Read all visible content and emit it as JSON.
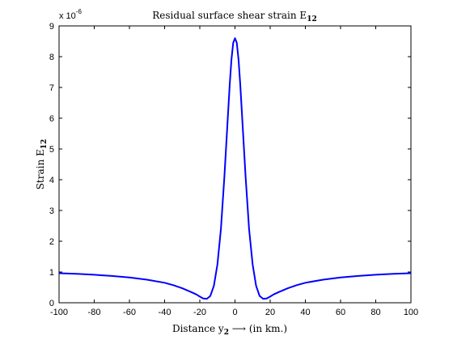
{
  "chart_data": {
    "type": "line",
    "title_main": "Residual surface shear strain E",
    "title_sub": "12",
    "xlabel_pre": "Distance y",
    "xlabel_sub": "2",
    "xlabel_post": " ⟶ (in km.)",
    "ylabel_main": "Strain E",
    "ylabel_sub": "12",
    "y_multiplier_base": "x 10",
    "y_multiplier_exp": "-6",
    "xlim": [
      -100,
      100
    ],
    "ylim": [
      0,
      9
    ],
    "xticks": [
      -100,
      -80,
      -60,
      -40,
      -20,
      0,
      20,
      40,
      60,
      80,
      100
    ],
    "yticks": [
      0,
      1,
      2,
      3,
      4,
      5,
      6,
      7,
      8,
      9
    ],
    "grid": false,
    "series": [
      {
        "color": "#0000ff",
        "x": [
          -100,
          -90,
          -80,
          -70,
          -60,
          -50,
          -40,
          -35,
          -30,
          -25,
          -22,
          -20,
          -18,
          -16,
          -14,
          -12,
          -10,
          -8,
          -6,
          -4,
          -3,
          -2,
          -1,
          0,
          1,
          2,
          3,
          4,
          6,
          8,
          10,
          12,
          14,
          16,
          18,
          20,
          22,
          25,
          30,
          35,
          40,
          50,
          60,
          70,
          80,
          90,
          100
        ],
        "y": [
          0.96,
          0.94,
          0.91,
          0.87,
          0.82,
          0.75,
          0.65,
          0.57,
          0.47,
          0.35,
          0.27,
          0.2,
          0.14,
          0.13,
          0.22,
          0.55,
          1.25,
          2.4,
          4.1,
          6.1,
          7.1,
          7.9,
          8.45,
          8.6,
          8.45,
          7.9,
          7.1,
          6.1,
          4.1,
          2.4,
          1.25,
          0.55,
          0.22,
          0.13,
          0.14,
          0.2,
          0.27,
          0.35,
          0.47,
          0.57,
          0.65,
          0.75,
          0.82,
          0.87,
          0.91,
          0.94,
          0.96
        ]
      }
    ]
  }
}
